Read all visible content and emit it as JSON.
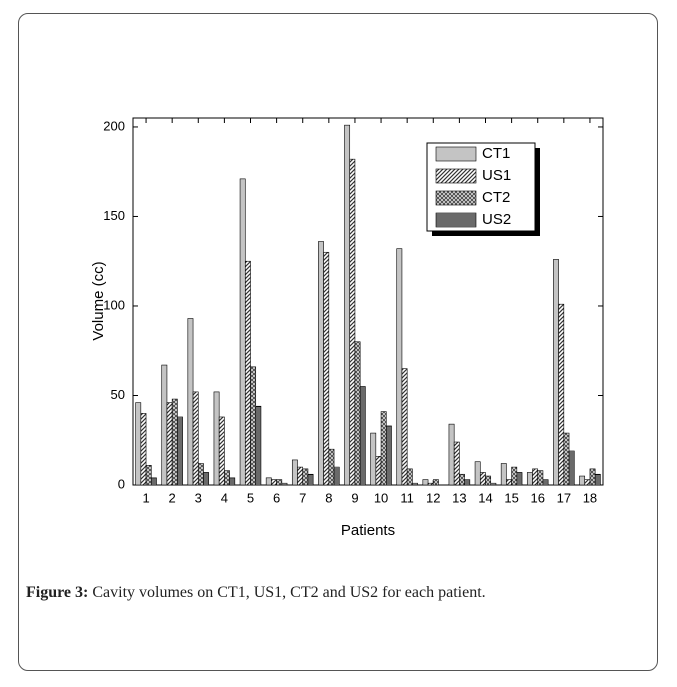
{
  "chart_data": {
    "type": "bar",
    "xlabel": "Patients",
    "ylabel": "Volume (cc)",
    "categories": [
      "1",
      "2",
      "3",
      "4",
      "5",
      "6",
      "7",
      "8",
      "9",
      "10",
      "11",
      "12",
      "13",
      "14",
      "15",
      "16",
      "17",
      "18"
    ],
    "series": [
      {
        "name": "CT1",
        "color": "#c4c4c4",
        "pattern": "solid",
        "values": [
          46,
          67,
          93,
          52,
          171,
          4,
          14,
          136,
          201,
          29,
          132,
          3,
          34,
          13,
          12,
          7,
          126,
          5
        ]
      },
      {
        "name": "US1",
        "color": "#333333",
        "pattern": "diagonal",
        "values": [
          40,
          46,
          52,
          38,
          125,
          3,
          10,
          130,
          182,
          16,
          65,
          1,
          24,
          7,
          3,
          9,
          101,
          3
        ]
      },
      {
        "name": "CT2",
        "color": "#555555",
        "pattern": "cross",
        "values": [
          11,
          48,
          12,
          8,
          66,
          3,
          9,
          20,
          80,
          41,
          9,
          3,
          6,
          5,
          10,
          8,
          29,
          9
        ]
      },
      {
        "name": "US2",
        "color": "#111111",
        "pattern": "horizontal",
        "values": [
          4,
          38,
          7,
          4,
          44,
          1,
          6,
          10,
          55,
          33,
          1,
          0,
          3,
          1,
          7,
          3,
          19,
          6
        ]
      }
    ],
    "ylim": [
      0,
      205
    ],
    "yticks": [
      0,
      50,
      100,
      150,
      200
    ],
    "legend": "top-right"
  },
  "caption_label": "Figure 3:",
  "caption": "Cavity volumes on CT1, US1, CT2 and US2 for each patient."
}
